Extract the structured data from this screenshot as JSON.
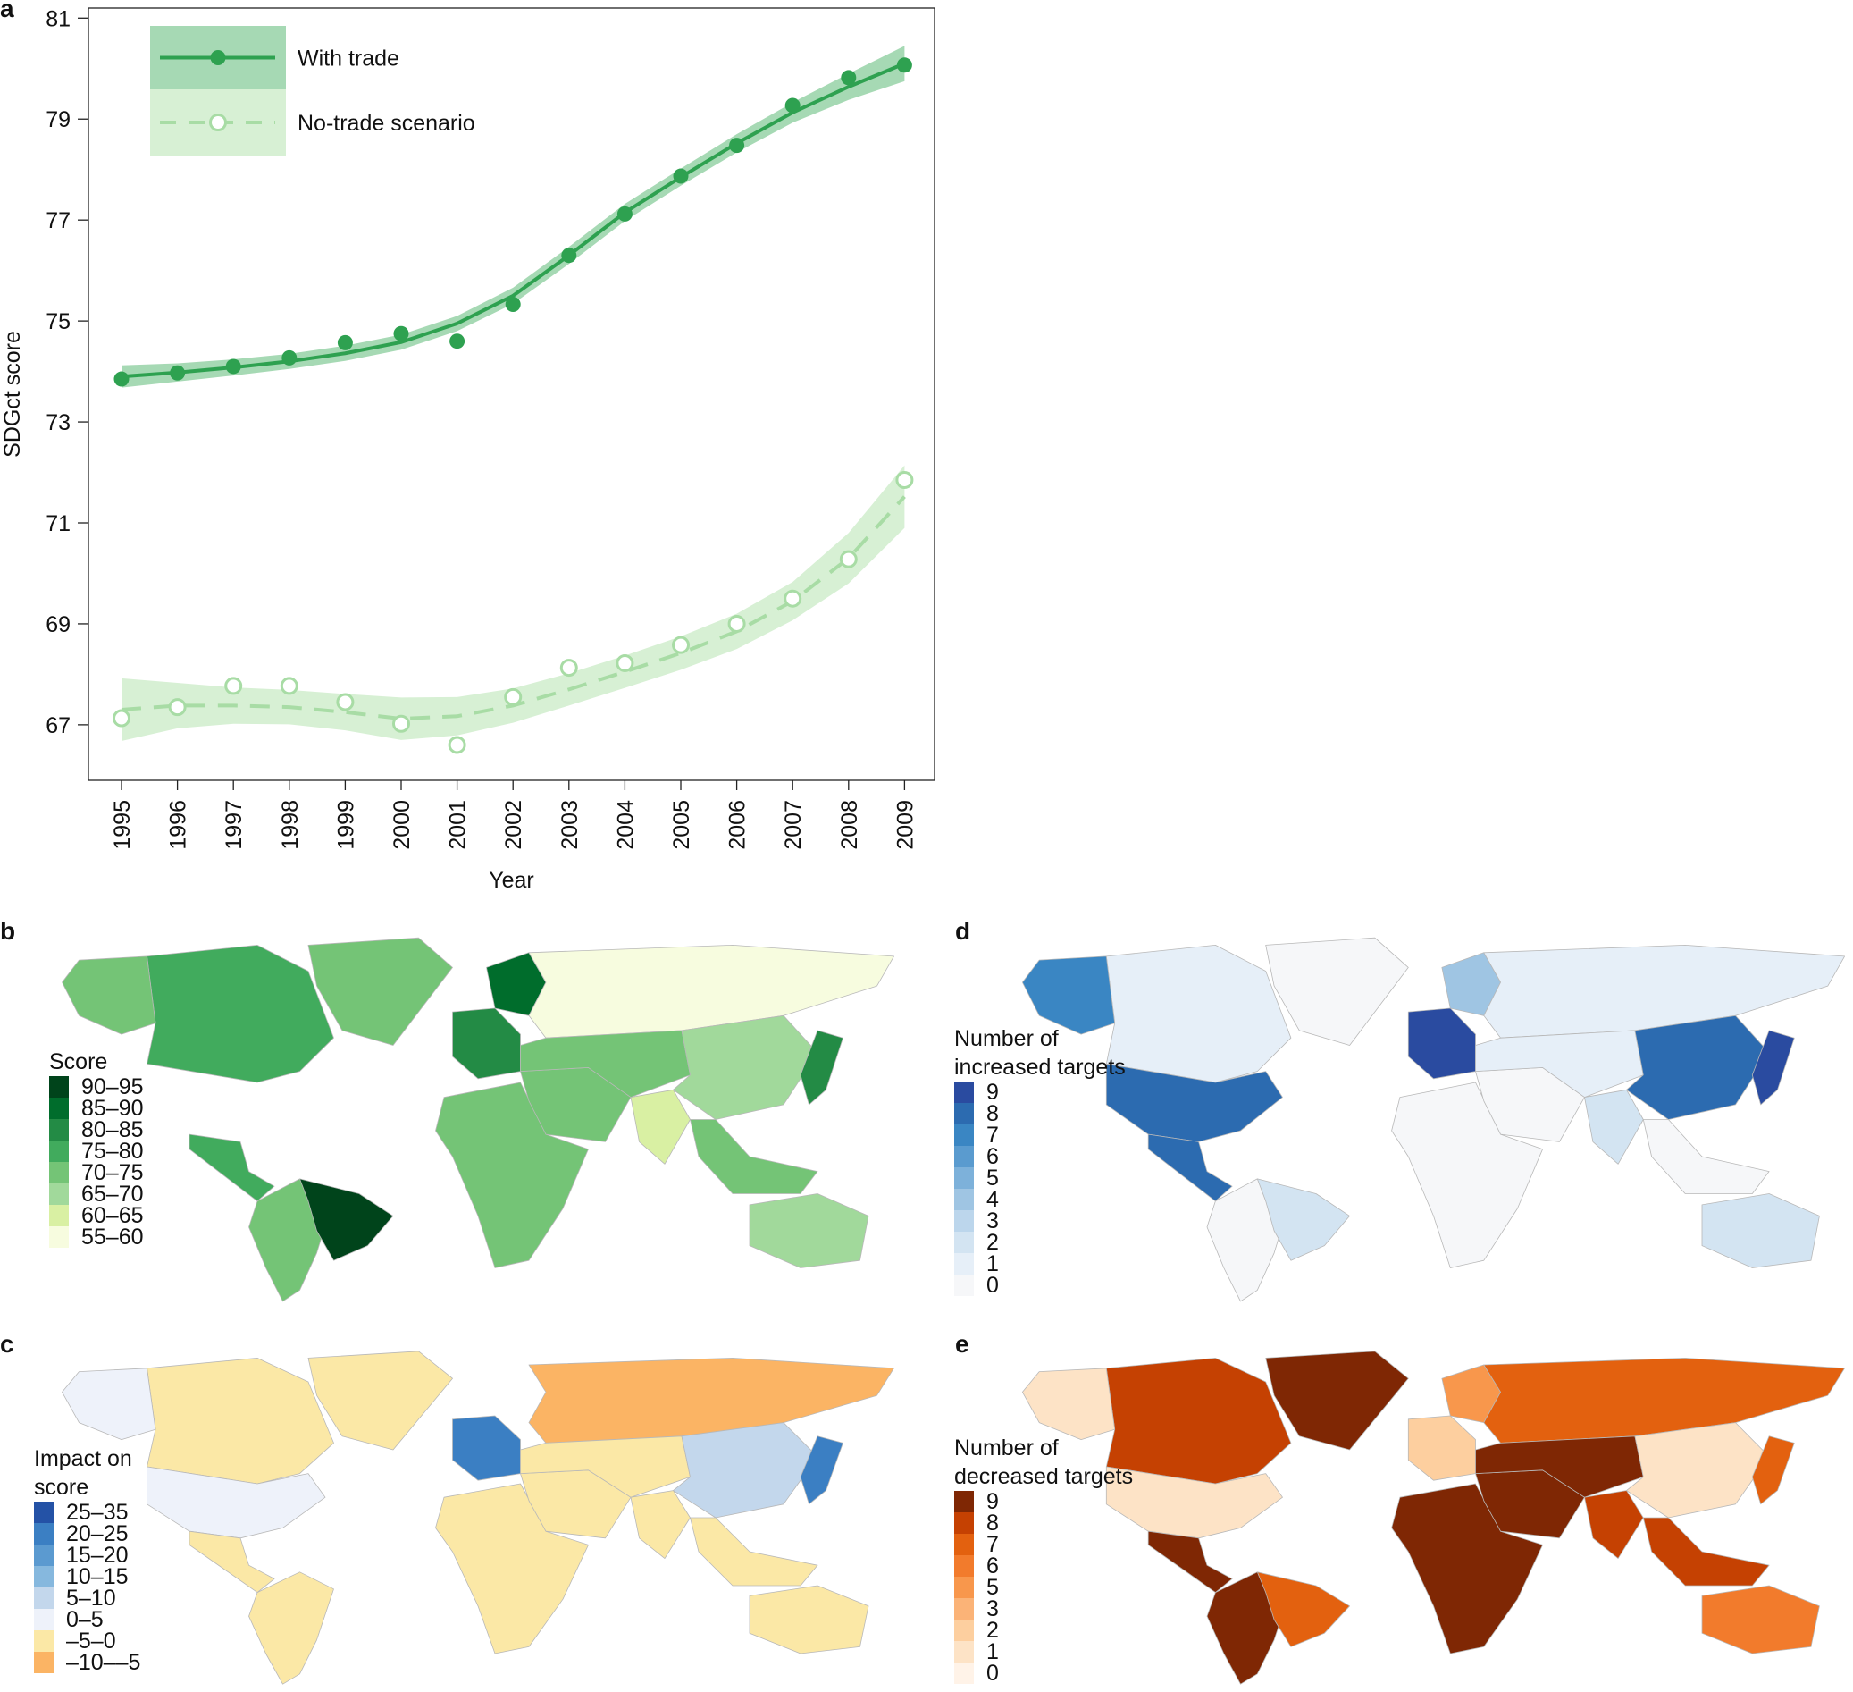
{
  "colors": {
    "with_trade": "#2ea150",
    "with_trade_band": "#a6d9b4",
    "no_trade": "#a8dca5",
    "no_trade_band": "#d7f0d4",
    "map_ocean": "#ffffff",
    "country_border": "#b8b8b8"
  },
  "chart_data": [
    {
      "panel": "a",
      "type": "line",
      "x": [
        1995,
        1996,
        1997,
        1998,
        1999,
        2000,
        2001,
        2002,
        2003,
        2004,
        2005,
        2006,
        2007,
        2008,
        2009
      ],
      "xlabel": "Year",
      "ylabel": "SDGct score",
      "ylim": [
        65.9,
        81.2
      ],
      "yticks": [
        67,
        69,
        71,
        73,
        75,
        77,
        79,
        81
      ],
      "grid": false,
      "legend_position": "top-left",
      "series": [
        {
          "name": "With trade",
          "style": "solid",
          "marker": "filled-circle",
          "points": [
            73.85,
            73.97,
            74.1,
            74.27,
            74.57,
            74.75,
            74.6,
            75.33,
            76.3,
            77.12,
            77.87,
            78.48,
            79.27,
            79.82,
            80.07
          ],
          "fit": [
            73.9,
            73.98,
            74.08,
            74.2,
            74.36,
            74.58,
            74.95,
            75.5,
            76.3,
            77.15,
            77.85,
            78.52,
            79.13,
            79.64,
            80.1
          ],
          "band_halfwidth": [
            0.22,
            0.18,
            0.16,
            0.15,
            0.15,
            0.15,
            0.15,
            0.16,
            0.17,
            0.17,
            0.17,
            0.18,
            0.2,
            0.26,
            0.35
          ]
        },
        {
          "name": "No-trade scenario",
          "style": "dashed",
          "marker": "open-circle",
          "points": [
            67.13,
            67.35,
            67.77,
            67.77,
            67.45,
            67.02,
            66.6,
            67.55,
            68.13,
            68.22,
            68.58,
            69.0,
            69.5,
            70.28,
            71.85
          ],
          "fit": [
            67.3,
            67.38,
            67.38,
            67.35,
            67.25,
            67.12,
            67.17,
            67.38,
            67.7,
            68.05,
            68.42,
            68.85,
            69.45,
            70.3,
            71.52
          ],
          "band_halfwidth": [
            0.62,
            0.45,
            0.36,
            0.34,
            0.36,
            0.42,
            0.38,
            0.34,
            0.32,
            0.32,
            0.33,
            0.35,
            0.38,
            0.5,
            0.62
          ]
        }
      ]
    },
    {
      "panel": "b",
      "type": "heatmap",
      "legend_title": "Score",
      "legend_position": "left",
      "bins": [
        "90–95",
        "85–90",
        "80–85",
        "75–80",
        "70–75",
        "65–70",
        "60–65",
        "55–60"
      ],
      "bin_colors": [
        "#00441b",
        "#006d2c",
        "#238b45",
        "#41ab5d",
        "#74c476",
        "#a1d99b",
        "#d9f0a3",
        "#f7fcdf"
      ],
      "regions": [
        {
          "name": "North America",
          "bin": "75–80"
        },
        {
          "name": "Alaska",
          "bin": "70–75"
        },
        {
          "name": "Greenland",
          "bin": "70–75"
        },
        {
          "name": "Central America",
          "bin": "75–80"
        },
        {
          "name": "South America",
          "bin": "70–75"
        },
        {
          "name": "Brazil",
          "bin": "90–95"
        },
        {
          "name": "Western Europe",
          "bin": "80–85"
        },
        {
          "name": "Scandinavia",
          "bin": "85–90"
        },
        {
          "name": "Russia",
          "bin": "55–60"
        },
        {
          "name": "Africa",
          "bin": "70–75"
        },
        {
          "name": "Middle East",
          "bin": "70–75"
        },
        {
          "name": "Central Asia",
          "bin": "70–75"
        },
        {
          "name": "China",
          "bin": "65–70"
        },
        {
          "name": "India",
          "bin": "60–65"
        },
        {
          "name": "Southeast Asia",
          "bin": "70–75"
        },
        {
          "name": "Japan",
          "bin": "80–85"
        },
        {
          "name": "Australia",
          "bin": "65–70"
        }
      ]
    },
    {
      "panel": "c",
      "type": "heatmap",
      "legend_title": "Impact on\nscore",
      "legend_position": "left",
      "bins": [
        "25–35",
        "20–25",
        "15–20",
        "10–15",
        "5–10",
        "0–5",
        "–5–0",
        "–10––5"
      ],
      "bin_colors": [
        "#2452a6",
        "#3b7fc3",
        "#5b9ad0",
        "#86b8de",
        "#c3d7ec",
        "#eef2fa",
        "#fbe8a6",
        "#fbb464"
      ],
      "regions": [
        {
          "name": "North America",
          "bin": "–5–0"
        },
        {
          "name": "United States",
          "bin": "0–5"
        },
        {
          "name": "Alaska",
          "bin": "0–5"
        },
        {
          "name": "Greenland",
          "bin": "–5–0"
        },
        {
          "name": "Central America",
          "bin": "–5–0"
        },
        {
          "name": "South America",
          "bin": "–5–0"
        },
        {
          "name": "Western Europe",
          "bin": "20–25"
        },
        {
          "name": "Russia",
          "bin": "–10––5"
        },
        {
          "name": "Africa",
          "bin": "–5–0"
        },
        {
          "name": "Middle East",
          "bin": "–5–0"
        },
        {
          "name": "Central Asia",
          "bin": "–5–0"
        },
        {
          "name": "China",
          "bin": "5–10"
        },
        {
          "name": "India",
          "bin": "–5–0"
        },
        {
          "name": "Southeast Asia",
          "bin": "–5–0"
        },
        {
          "name": "Japan",
          "bin": "20–25"
        },
        {
          "name": "Australia",
          "bin": "–5–0"
        }
      ]
    },
    {
      "panel": "d",
      "type": "heatmap",
      "legend_title": "Number of\nincreased targets",
      "legend_position": "left",
      "bins": [
        "9",
        "8",
        "7",
        "6",
        "5",
        "4",
        "3",
        "2",
        "1",
        "0"
      ],
      "bin_colors": [
        "#2a4ba0",
        "#2c6bb0",
        "#3a86c3",
        "#5a9bcf",
        "#7db1da",
        "#9fc5e3",
        "#bcd6ec",
        "#d3e4f2",
        "#e6eff8",
        "#f6f7f9"
      ],
      "regions": [
        {
          "name": "North America",
          "bin": "1"
        },
        {
          "name": "United States",
          "bin": "8"
        },
        {
          "name": "Alaska",
          "bin": "7"
        },
        {
          "name": "Greenland",
          "bin": "0"
        },
        {
          "name": "Central America",
          "bin": "8"
        },
        {
          "name": "South America",
          "bin": "0"
        },
        {
          "name": "Brazil",
          "bin": "2"
        },
        {
          "name": "Western Europe",
          "bin": "9"
        },
        {
          "name": "Scandinavia",
          "bin": "4"
        },
        {
          "name": "Russia",
          "bin": "1"
        },
        {
          "name": "Africa",
          "bin": "0"
        },
        {
          "name": "Middle East",
          "bin": "0"
        },
        {
          "name": "Central Asia",
          "bin": "1"
        },
        {
          "name": "China",
          "bin": "8"
        },
        {
          "name": "India",
          "bin": "2"
        },
        {
          "name": "Southeast Asia",
          "bin": "0"
        },
        {
          "name": "Japan",
          "bin": "9"
        },
        {
          "name": "Australia",
          "bin": "2"
        }
      ]
    },
    {
      "panel": "e",
      "type": "heatmap",
      "legend_title": "Number of\ndecreased targets",
      "legend_position": "left",
      "bins": [
        "9",
        "8",
        "7",
        "6",
        "5",
        "3",
        "2",
        "1",
        "0"
      ],
      "bin_colors": [
        "#7f2704",
        "#c54102",
        "#e3610f",
        "#f27b2c",
        "#f8974c",
        "#fbb377",
        "#fdcf9f",
        "#fde3c6",
        "#fff3e8"
      ],
      "regions": [
        {
          "name": "North America",
          "bin": "8"
        },
        {
          "name": "United States",
          "bin": "1"
        },
        {
          "name": "Alaska",
          "bin": "1"
        },
        {
          "name": "Greenland",
          "bin": "9"
        },
        {
          "name": "Central America",
          "bin": "9"
        },
        {
          "name": "South America",
          "bin": "9"
        },
        {
          "name": "Brazil",
          "bin": "7"
        },
        {
          "name": "Western Europe",
          "bin": "2"
        },
        {
          "name": "Scandinavia",
          "bin": "5"
        },
        {
          "name": "Russia",
          "bin": "7"
        },
        {
          "name": "Africa",
          "bin": "9"
        },
        {
          "name": "Middle East",
          "bin": "9"
        },
        {
          "name": "Central Asia",
          "bin": "9"
        },
        {
          "name": "China",
          "bin": "1"
        },
        {
          "name": "India",
          "bin": "8"
        },
        {
          "name": "Southeast Asia",
          "bin": "8"
        },
        {
          "name": "Japan",
          "bin": "7"
        },
        {
          "name": "Australia",
          "bin": "6"
        }
      ]
    }
  ]
}
